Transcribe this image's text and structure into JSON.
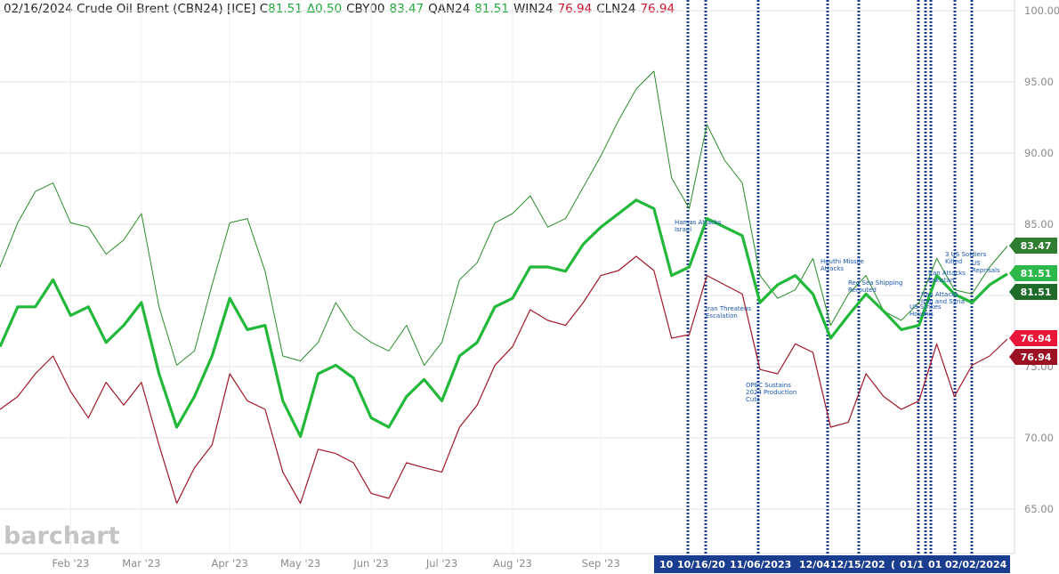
{
  "chart_data": {
    "type": "line",
    "header": [
      {
        "text": "02/16/2024 Crude Oil Brent (CBN24) [ICE] C",
        "color": "#222222"
      },
      {
        "text": "81.51",
        "color": "#1fa83a"
      },
      {
        "text": "Δ0.50",
        "color": "#1fa83a"
      },
      {
        "text": "CBY00",
        "color": "#222222"
      },
      {
        "text": "83.47",
        "color": "#1fa83a"
      },
      {
        "text": "QAN24",
        "color": "#222222"
      },
      {
        "text": "81.51",
        "color": "#1fa83a"
      },
      {
        "text": "WIN24",
        "color": "#222222"
      },
      {
        "text": "76.94",
        "color": "#d0142c"
      },
      {
        "text": "CLN24",
        "color": "#222222"
      },
      {
        "text": "76.94",
        "color": "#d0142c"
      }
    ],
    "watermark": "barchart",
    "categories": [
      null,
      null,
      null,
      null,
      "Feb '23",
      null,
      null,
      null,
      "Mar '23",
      null,
      null,
      null,
      null,
      "Apr '23",
      null,
      null,
      null,
      "May '23",
      null,
      null,
      null,
      "Jun '23",
      null,
      null,
      null,
      "Jul '23",
      null,
      null,
      null,
      "Aug '23",
      null,
      null,
      null,
      null,
      "Sep '23",
      null,
      null,
      null,
      null,
      null,
      null,
      null,
      null,
      null,
      null,
      null,
      null,
      null,
      null,
      null,
      null,
      null,
      null,
      null,
      null,
      null,
      null,
      null
    ],
    "ylim": [
      62,
      100.75
    ],
    "yticks": [
      {
        "value": 65,
        "label": "65.00"
      },
      {
        "value": 70,
        "label": "70.00"
      },
      {
        "value": 75,
        "label": "75.00"
      },
      {
        "value": 80,
        "label": "80.00"
      },
      {
        "value": 85,
        "label": "85.00"
      },
      {
        "value": 90,
        "label": "90.00"
      },
      {
        "value": 95,
        "label": "95.00"
      },
      {
        "value": 100,
        "label": "100.00"
      }
    ],
    "grid": true,
    "series": [
      {
        "name": "CBY00",
        "color": "#2a8c2a",
        "width": 1,
        "values": [
          82.0,
          85.1,
          87.3,
          87.9,
          85.1,
          84.8,
          82.9,
          83.9,
          85.75,
          79.2,
          75.1,
          76.1,
          80.75,
          85.1,
          85.4,
          81.7,
          75.75,
          75.4,
          76.7,
          79.5,
          77.6,
          76.7,
          76.1,
          77.9,
          75.1,
          76.7,
          81.1,
          82.3,
          85.1,
          85.75,
          87.0,
          84.8,
          85.4,
          87.6,
          89.8,
          92.3,
          94.5,
          95.75,
          88.25,
          86.1,
          92.0,
          89.5,
          87.9,
          81.4,
          79.8,
          80.4,
          82.6,
          77.9,
          80.1,
          81.4,
          78.9,
          78.25,
          79.5,
          82.6,
          80.4,
          80.1,
          82.0,
          83.47
        ]
      },
      {
        "name": "QAN24",
        "color": "#22b83a",
        "width": 3.2,
        "values": [
          76.4,
          79.2,
          79.2,
          81.1,
          78.6,
          79.2,
          76.7,
          77.9,
          79.5,
          74.5,
          70.75,
          72.9,
          75.75,
          79.8,
          77.6,
          77.9,
          72.6,
          70.1,
          74.5,
          75.1,
          74.2,
          71.4,
          70.75,
          72.9,
          74.1,
          72.6,
          75.75,
          76.7,
          79.2,
          79.8,
          82.0,
          82.0,
          81.7,
          83.6,
          84.8,
          85.75,
          86.7,
          86.1,
          81.4,
          82.0,
          85.4,
          84.8,
          84.2,
          79.5,
          80.75,
          81.4,
          80.1,
          77.0,
          78.6,
          80.1,
          78.9,
          77.6,
          77.9,
          81.4,
          80.1,
          79.5,
          80.75,
          81.51
        ]
      },
      {
        "name": "WIN24",
        "color": "#a01828",
        "width": 1.2,
        "values": [
          72.0,
          72.9,
          74.5,
          75.75,
          73.25,
          71.4,
          73.9,
          72.3,
          73.9,
          69.5,
          65.4,
          67.9,
          69.5,
          74.5,
          72.6,
          72.0,
          67.6,
          65.4,
          69.2,
          68.9,
          68.25,
          66.1,
          65.75,
          68.25,
          67.9,
          67.6,
          70.75,
          72.3,
          75.1,
          76.4,
          79.0,
          78.25,
          77.9,
          79.5,
          81.4,
          81.75,
          82.75,
          81.75,
          77.0,
          77.25,
          81.4,
          80.75,
          80.1,
          74.8,
          74.5,
          76.6,
          76.0,
          70.75,
          71.1,
          74.5,
          72.9,
          72.0,
          72.6,
          76.6,
          72.9,
          75.1,
          75.75,
          76.94
        ]
      }
    ],
    "tags": [
      {
        "value": 83.47,
        "color": "#2e7d32"
      },
      {
        "value": 81.51,
        "color": "#2db84b"
      },
      {
        "value": 81.51,
        "color": "#1e6b2a"
      },
      {
        "value": 76.94,
        "color": "#e8173a"
      },
      {
        "value": 76.94,
        "color": "#9c1024"
      }
    ],
    "event_color": "#1a3d8f",
    "events": [
      {
        "date_label": "10",
        "annotation": [
          "Hamas Attacks",
          "Israel"
        ]
      },
      {
        "date_label": "10/16/20",
        "annotation": [
          "Iran Threatens",
          "Escalation"
        ]
      },
      {
        "date_label": "11/06/2023",
        "annotation": [
          "OPEC Sustains",
          "2024 Production",
          "Cuts"
        ]
      },
      {
        "date_label": "12/04",
        "annotation": [
          "Houthi Missile",
          "Attacks"
        ]
      },
      {
        "date_label": "12/15/202",
        "annotation": [
          "Red Sea Shipping",
          "Rerouted"
        ]
      },
      {
        "date_label": "(",
        "annotation": [
          "US Strikes",
          "Houthis"
        ]
      },
      {
        "date_label": "01/1",
        "annotation": [
          "Iran Attacks",
          "Iraq and Syria"
        ]
      },
      {
        "date_label": "01",
        "annotation": [
          "Iran Attacks",
          "Pakistan"
        ]
      },
      {
        "date_label": "02/02/2024",
        "annotation": [
          "3 US Soldiers",
          "Killed"
        ]
      },
      {
        "date_label": null,
        "annotation": [
          "US",
          "Reprisals"
        ]
      }
    ]
  }
}
